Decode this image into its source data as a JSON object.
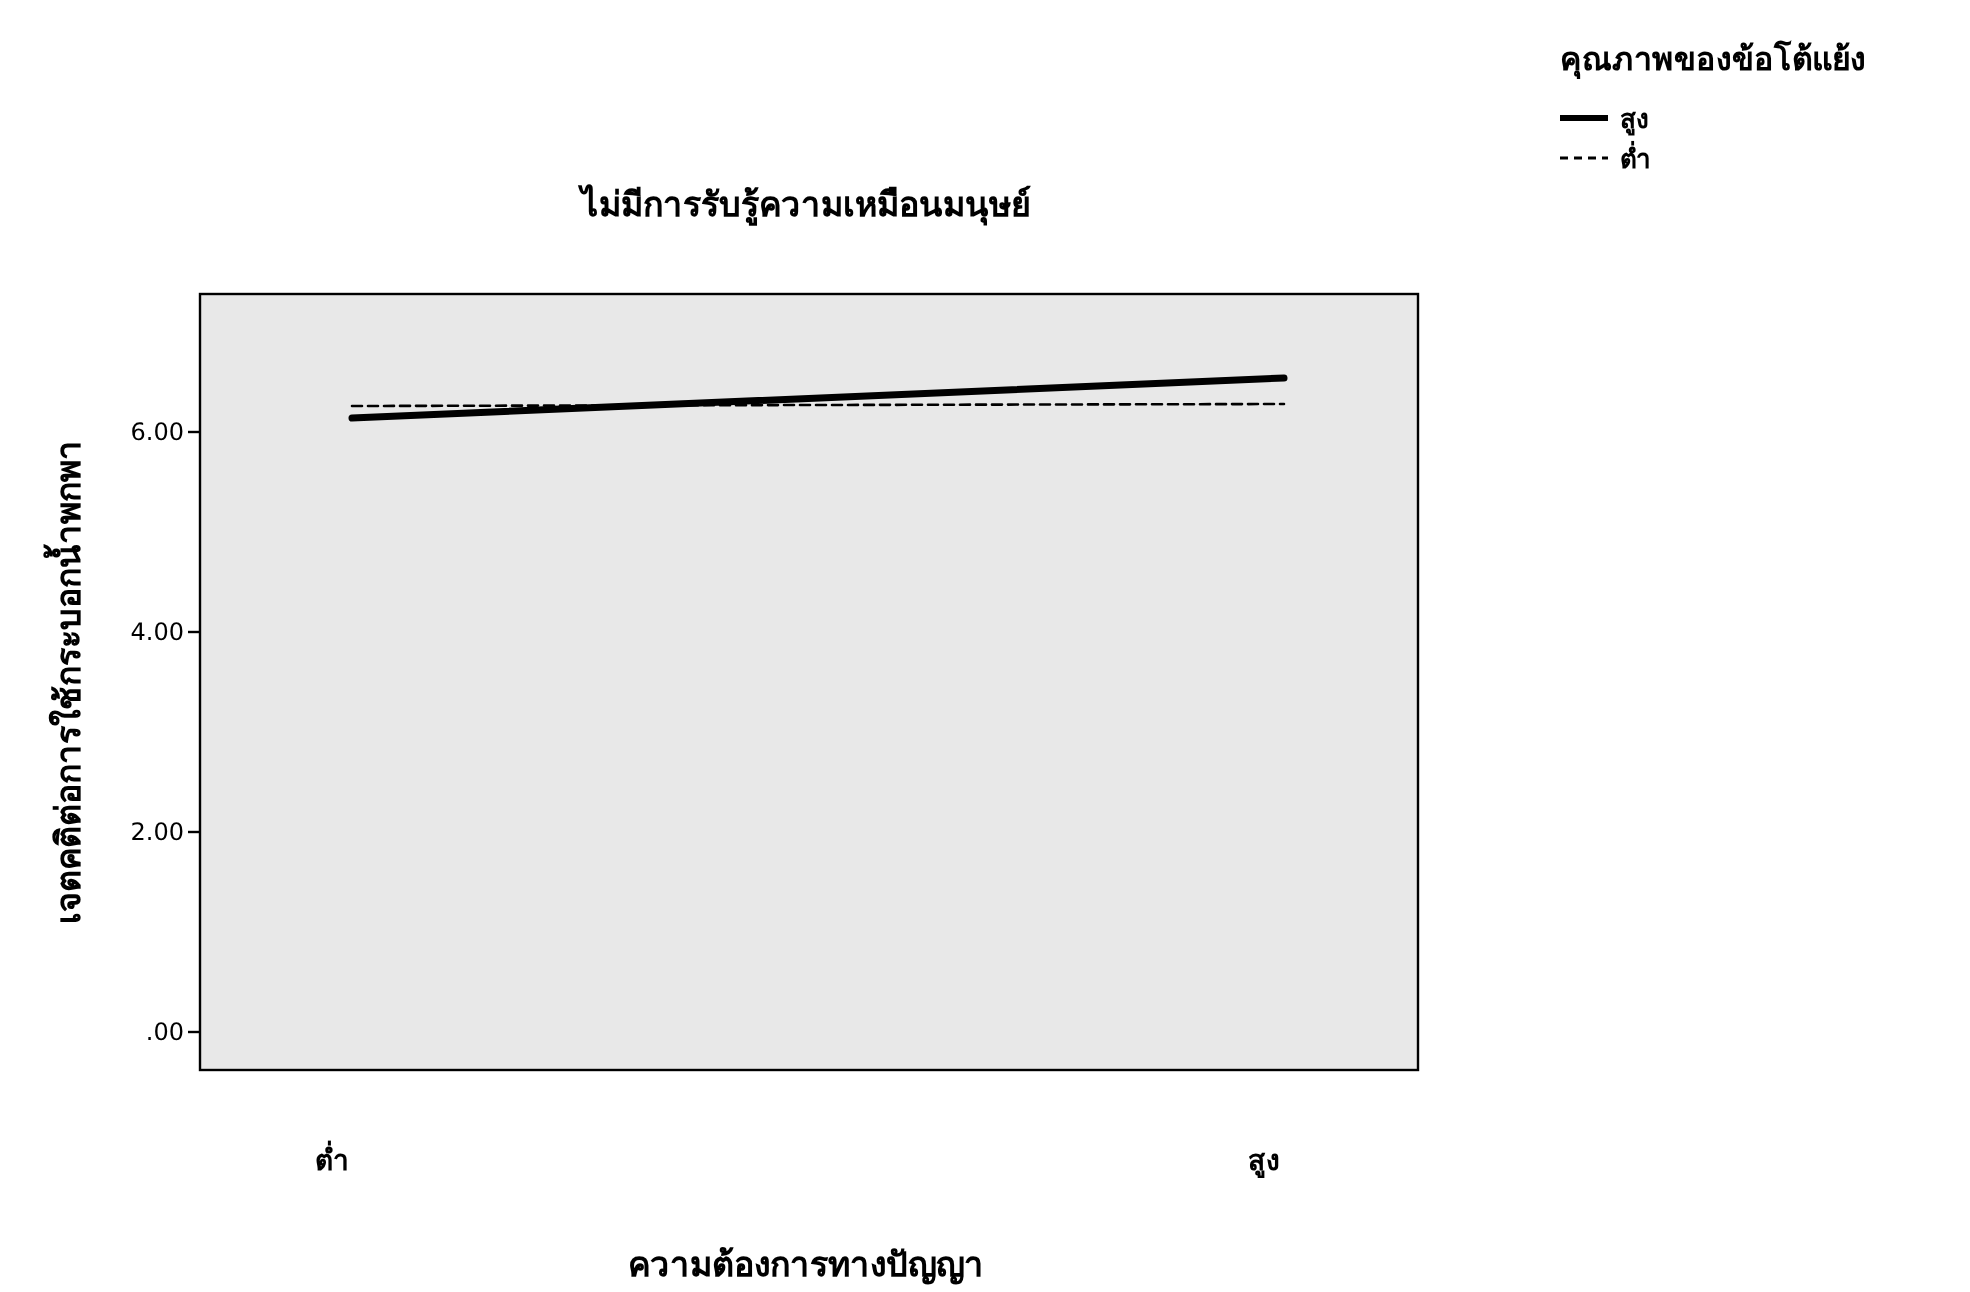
{
  "chart_data": {
    "type": "line",
    "title": "ไม่มีการรับรู้ความเหมือนมนุษย์",
    "xlabel": "ความต้องการทางปัญญา",
    "ylabel": "เจตคติต่อการใช้กระบอกน้ำพกพา",
    "legend_title": "คุณภาพของข้อโต้แย้ง",
    "categories": [
      "ต่ำ",
      "สูง"
    ],
    "series": [
      {
        "name": "สูง",
        "color": "#000000",
        "line_style": "solid",
        "values": [
          6.14,
          6.54
        ]
      },
      {
        "name": "ต่ำ",
        "color": "#000000",
        "line_style": "dashed",
        "values": [
          6.26,
          6.28
        ]
      }
    ],
    "ylim": [
      -0.38,
      7.38
    ],
    "yticks": [
      {
        "value": 0,
        "label": ".00"
      },
      {
        "value": 2,
        "label": "2.00"
      },
      {
        "value": 4,
        "label": "4.00"
      },
      {
        "value": 6,
        "label": "6.00"
      }
    ],
    "grid": false,
    "legend": "top right",
    "marker": "none"
  }
}
